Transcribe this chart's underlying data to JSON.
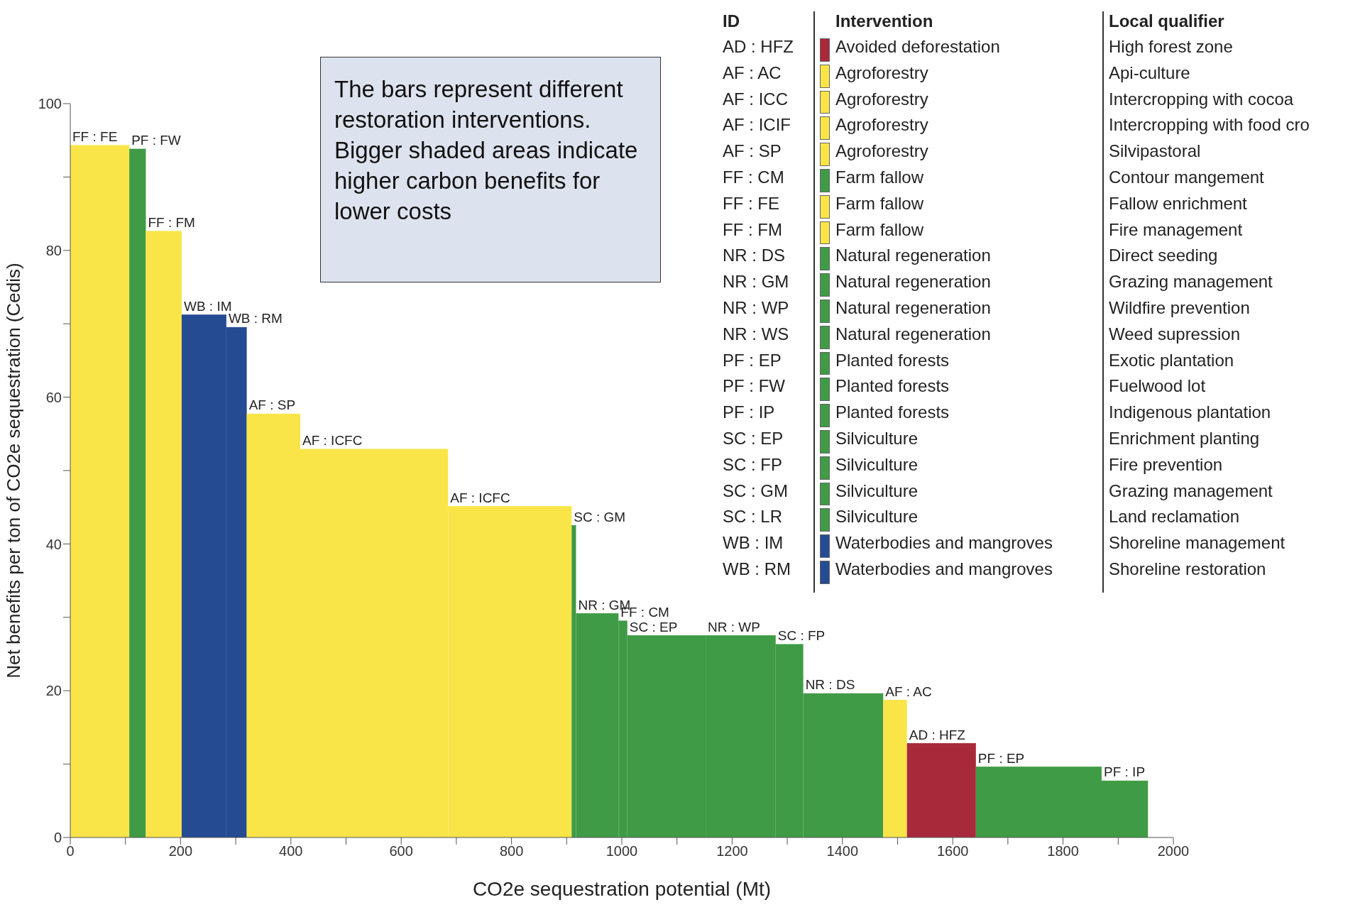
{
  "chart_data": {
    "type": "area",
    "xlabel": "CO2e sequestration potential (Mt)",
    "ylabel": "Net benefits per ton of CO2e sequestration (Cedis)",
    "xlim": [
      0,
      2000
    ],
    "ylim": [
      0,
      100
    ],
    "xticks": [
      0,
      {
        "value": 100,
        "label": null
      },
      200,
      {
        "value": 300,
        "label": null
      },
      400,
      {
        "value": 500,
        "label": null
      },
      600,
      {
        "value": 700,
        "label": null
      },
      800,
      {
        "value": 900,
        "label": null
      },
      1000,
      {
        "value": 1100,
        "label": null
      },
      1200,
      {
        "value": 1300,
        "label": null
      },
      1400,
      {
        "value": 1500,
        "label": null
      },
      1600,
      {
        "value": 1700,
        "label": null
      },
      1800,
      {
        "value": 1900,
        "label": null
      },
      2000
    ],
    "yticks": [
      0,
      {
        "value": 10,
        "label": null
      },
      20,
      {
        "value": 30,
        "label": null
      },
      40,
      {
        "value": 50,
        "label": null
      },
      60,
      {
        "value": 70,
        "label": null
      },
      80,
      {
        "value": 90,
        "label": null
      },
      100
    ],
    "series": [
      {
        "name": "FF : FE",
        "color": "#f9e547",
        "x": [
          0,
          107
        ],
        "values": [
          94.3,
          94.3
        ]
      },
      {
        "name": "PF : FW",
        "color": "#3f9b45",
        "x": [
          107,
          137
        ],
        "values": [
          93.8,
          93.8
        ]
      },
      {
        "name": "FF : FM",
        "color": "#f9e547",
        "x": [
          137,
          202
        ],
        "values": [
          82.6,
          82.6
        ]
      },
      {
        "name": "WB : IM",
        "color": "#254b93",
        "x": [
          202,
          283
        ],
        "values": [
          71.2,
          71.2
        ]
      },
      {
        "name": "WB : RM",
        "color": "#254b93",
        "x": [
          283,
          320
        ],
        "values": [
          69.5,
          69.5
        ]
      },
      {
        "name": "AF : SP",
        "color": "#f9e547",
        "x": [
          320,
          417
        ],
        "values": [
          57.7,
          57.7
        ]
      },
      {
        "name": "AF : ICFC",
        "color": "#f9e547",
        "x": [
          417,
          685
        ],
        "values": [
          52.9,
          52.9
        ]
      },
      {
        "name": "AF : ICFC",
        "color": "#f9e547",
        "x": [
          685,
          909
        ],
        "values": [
          45.1,
          45.1
        ]
      },
      {
        "name": "SC : GM",
        "color": "#3f9b45",
        "x": [
          909,
          917
        ],
        "values": [
          42.5,
          42.5
        ]
      },
      {
        "name": "NR : GM",
        "color": "#3f9b45",
        "x": [
          917,
          994
        ],
        "values": [
          30.5,
          30.5
        ]
      },
      {
        "name": "FF : CM",
        "color": "#3f9b45",
        "x": [
          994,
          1010
        ],
        "values": [
          29.5,
          29.5
        ]
      },
      {
        "name": "SC : EP",
        "color": "#3f9b45",
        "x": [
          1010,
          1152
        ],
        "values": [
          27.5,
          27.5
        ]
      },
      {
        "name": "NR : WP",
        "color": "#3f9b45",
        "x": [
          1152,
          1279
        ],
        "values": [
          27.5,
          27.5
        ]
      },
      {
        "name": "SC : FP",
        "color": "#3f9b45",
        "x": [
          1279,
          1329
        ],
        "values": [
          26.3,
          26.3
        ]
      },
      {
        "name": "NR : DS",
        "color": "#3f9b45",
        "x": [
          1329,
          1474
        ],
        "values": [
          19.6,
          19.6
        ]
      },
      {
        "name": "AF : AC",
        "color": "#f9e547",
        "x": [
          1474,
          1517
        ],
        "values": [
          18.7,
          18.7
        ]
      },
      {
        "name": "AD : HFZ",
        "color": "#a8293a",
        "x": [
          1517,
          1642
        ],
        "values": [
          12.8,
          12.8
        ]
      },
      {
        "name": "PF : EP",
        "color": "#3f9b45",
        "x": [
          1642,
          1870
        ],
        "values": [
          9.6,
          9.6
        ]
      },
      {
        "name": "PF : IP",
        "color": "#3f9b45",
        "x": [
          1870,
          1954
        ],
        "values": [
          7.7,
          7.7
        ]
      }
    ],
    "annotations": [
      "The bars represent different restoration interventions. Bigger shaded areas indicate higher carbon benefits for lower costs",
      "ID",
      "Intervention",
      "Local qualifier",
      "AD : HFZ",
      "Avoided deforestation",
      "High forest zone",
      "AF : AC",
      "Agroforestry",
      "Api-culture",
      "AF : ICC",
      "Agroforestry",
      "Intercropping with cocoa",
      "AF : ICIF",
      "Agroforestry",
      "Intercropping with food cro",
      "AF : SP",
      "Agroforestry",
      "Silvipastoral",
      "FF : CM",
      "Farm fallow",
      "Contour mangement",
      "FF : FE",
      "Farm fallow",
      "Fallow enrichment",
      "FF : FM",
      "Farm fallow",
      "Fire management",
      "NR : DS",
      "Natural regeneration",
      "Direct seeding",
      "NR : GM",
      "Natural regeneration",
      "Grazing management",
      "NR : WP",
      "Natural regeneration",
      "Wildfire prevention",
      "NR : WS",
      "Natural regeneration",
      "Weed supression",
      "PF : EP",
      "Planted forests",
      "Exotic plantation",
      "PF : FW",
      "Planted forests",
      "Fuelwood lot",
      "PF : IP",
      "Planted forests",
      "Indigenous plantation",
      "SC : EP",
      "Silviculture",
      "Enrichment planting",
      "SC : FP",
      "Silviculture",
      "Fire prevention",
      "SC : GM",
      "Silviculture",
      "Grazing management",
      "SC : LR",
      "Silviculture",
      "Land reclamation",
      "WB : IM",
      "Waterbodies and mangroves",
      "Shoreline management",
      "WB : RM",
      "Waterbodies and mangroves",
      "Shoreline restoration"
    ]
  }
}
